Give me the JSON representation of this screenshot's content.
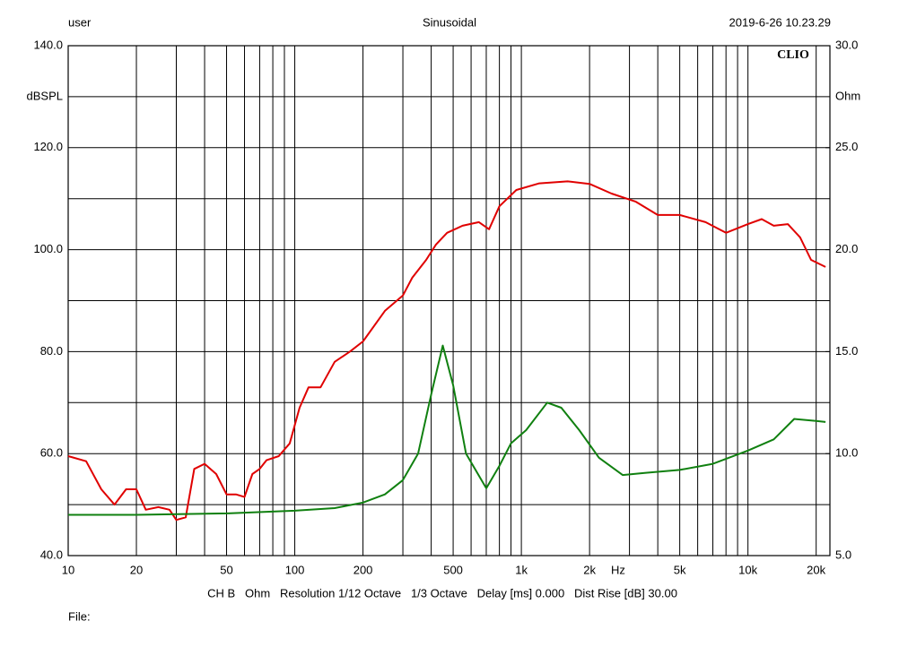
{
  "chart_data": {
    "type": "line",
    "header_left": "user",
    "title": "Sinusoidal",
    "header_right": "2019-6-26 10.23.29",
    "logo": "CLIO",
    "ylabel": "dBSPL",
    "y2label": "Ohm",
    "xlabel": "Hz",
    "footer": "CH B   Ohm   Resolution 1/12 Octave   1/3 Octave   Delay [ms] 0.000   Dist Rise [dB] 30.00",
    "file_label": "File:",
    "log_x": true,
    "grid": true,
    "xlim": [
      10,
      23000
    ],
    "ylim": [
      40,
      140
    ],
    "y2lim": [
      5,
      30
    ],
    "xticks": [
      10,
      20,
      50,
      100,
      200,
      500,
      {
        "value": 1000,
        "label": "1k"
      },
      {
        "value": 2000,
        "label": "2k"
      },
      {
        "value": 5000,
        "label": "5k"
      },
      {
        "value": 10000,
        "label": "10k"
      },
      {
        "value": 20000,
        "label": "20k"
      }
    ],
    "xminor": [
      30,
      40,
      60,
      70,
      80,
      90,
      300,
      400,
      600,
      700,
      800,
      900,
      3000,
      4000,
      6000,
      7000,
      8000,
      9000
    ],
    "yticks": [
      {
        "value": 40,
        "label": "40.0"
      },
      {
        "value": 60,
        "label": "60.0"
      },
      {
        "value": 80,
        "label": "80.0"
      },
      {
        "value": 100,
        "label": "100.0"
      },
      {
        "value": 120,
        "label": "120.0"
      },
      {
        "value": 140,
        "label": "140.0"
      }
    ],
    "yminor": [
      50,
      70,
      90,
      110,
      130
    ],
    "y2ticks": [
      {
        "value": 5,
        "label": "5.0"
      },
      {
        "value": 10,
        "label": "10.0"
      },
      {
        "value": 15,
        "label": "15.0"
      },
      {
        "value": 20,
        "label": "20.0"
      },
      {
        "value": 25,
        "label": "25.0"
      },
      {
        "value": 30,
        "label": "30.0"
      }
    ],
    "series": [
      {
        "color": "#e00000",
        "x": [
          10,
          12,
          14,
          16,
          18,
          20,
          22,
          25,
          28,
          30,
          33,
          36,
          40,
          45,
          50,
          55,
          60,
          65,
          70,
          75,
          85,
          95,
          105,
          115,
          130,
          150,
          175,
          200,
          250,
          300,
          330,
          380,
          420,
          470,
          550,
          650,
          720,
          800,
          950,
          1200,
          1600,
          2000,
          2500,
          3200,
          4000,
          5000,
          6500,
          8000,
          10000,
          11500,
          13000,
          15000,
          17000,
          19000,
          22000
        ],
        "values": [
          59.5,
          58.5,
          53,
          50,
          53,
          53,
          49,
          49.5,
          49,
          47,
          47.5,
          57,
          58,
          56,
          52,
          52,
          51.5,
          56,
          57,
          58.7,
          59.5,
          62,
          69,
          73,
          73,
          78,
          80,
          82,
          88,
          91,
          94.5,
          98,
          101,
          103.3,
          104.7,
          105.4,
          104,
          108.5,
          111.7,
          113,
          113.4,
          112.9,
          111,
          109.4,
          106.8,
          106.8,
          105.4,
          103.3,
          105,
          106,
          104.7,
          105,
          102.4,
          98,
          96.6
        ]
      },
      {
        "color": "#108010",
        "axis": "y2",
        "x": [
          10,
          20,
          50,
          100,
          150,
          200,
          250,
          300,
          350,
          400,
          450,
          500,
          570,
          700,
          800,
          900,
          1050,
          1300,
          1500,
          1800,
          2200,
          2800,
          3500,
          5000,
          7000,
          10000,
          13000,
          16000,
          20000,
          22000
        ],
        "values": [
          7.0,
          7.0,
          7.07,
          7.2,
          7.33,
          7.6,
          8.0,
          8.7,
          10.0,
          12.9,
          15.3,
          13.35,
          10.0,
          8.3,
          9.4,
          10.5,
          11.15,
          12.5,
          12.25,
          11.15,
          9.8,
          8.95,
          9.05,
          9.2,
          9.5,
          10.15,
          10.7,
          11.7,
          11.6,
          11.55
        ]
      }
    ]
  }
}
